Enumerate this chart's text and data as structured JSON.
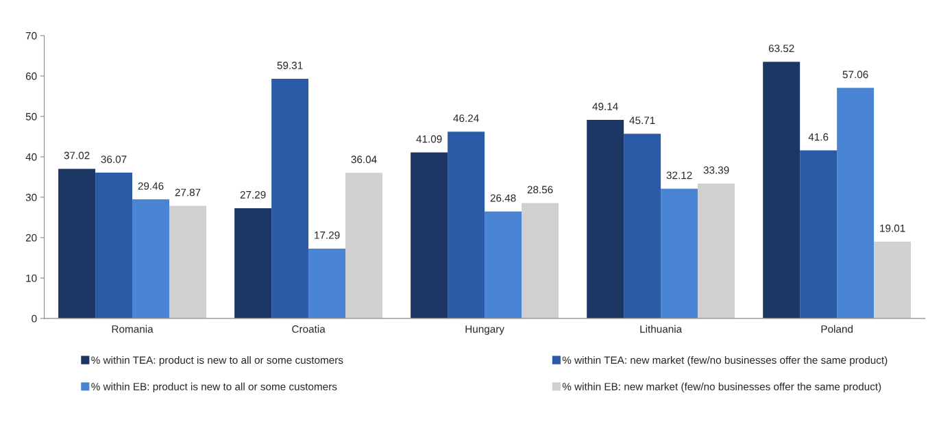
{
  "chart_data": {
    "type": "bar",
    "categories": [
      "Romania",
      "Croatia",
      "Hungary",
      "Lithuania",
      "Poland"
    ],
    "series": [
      {
        "name": "% within TEA: product is new to all or some customers",
        "color": "#1c3764",
        "values": [
          37.02,
          27.29,
          41.09,
          49.14,
          63.52
        ]
      },
      {
        "name": "% within TEA: new market (few/no businesses offer the same product)",
        "color": "#2b5ba7",
        "values": [
          36.07,
          59.31,
          46.24,
          45.71,
          41.6
        ]
      },
      {
        "name": "% within EB: product is new to all or some customers",
        "color": "#4a84d4",
        "values": [
          29.46,
          17.29,
          26.48,
          32.12,
          57.06
        ]
      },
      {
        "name": "% within EB: new market (few/no businesses offer the same product)",
        "color": "#d0d0d0",
        "values": [
          27.87,
          36.04,
          28.56,
          33.39,
          19.01
        ]
      }
    ],
    "ylim": [
      0,
      70
    ],
    "yticks": [
      0,
      10,
      20,
      30,
      40,
      50,
      60,
      70
    ],
    "data_labels": true,
    "legend": "bottom",
    "grid": false
  }
}
